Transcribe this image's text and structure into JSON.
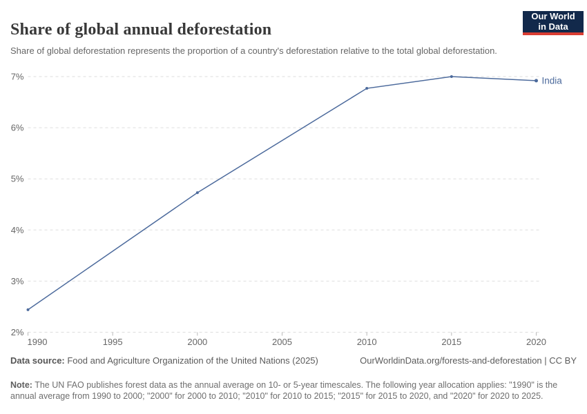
{
  "header": {
    "title": "Share of global annual deforestation",
    "subtitle": "Share of global deforestation represents the proportion of a country's deforestation relative to the total global deforestation.",
    "logo": {
      "line1": "Our World",
      "line2": "in Data",
      "bg_color": "#12294B",
      "accent_color": "#D93D32"
    }
  },
  "chart_data": {
    "type": "line",
    "title": "Share of global annual deforestation",
    "series": [
      {
        "name": "India",
        "color": "#4C6A9C",
        "x": [
          1990,
          2000,
          2010,
          2015,
          2020
        ],
        "values": [
          2.44,
          4.73,
          6.77,
          7.0,
          6.92
        ]
      }
    ],
    "xlabel": "",
    "ylabel": "",
    "x_ticks": [
      1990,
      1995,
      2000,
      2005,
      2010,
      2015,
      2020
    ],
    "y_ticks": [
      2,
      3,
      4,
      5,
      6,
      7
    ],
    "y_suffix": "%",
    "xlim": [
      1990,
      2020
    ],
    "ylim": [
      2,
      7
    ],
    "grid": "horizontal-dashed",
    "grid_color": "#dddddd",
    "tick_label_color": "#666666",
    "legend_position": "end-of-line"
  },
  "footer": {
    "source_label": "Data source:",
    "source_text": " Food and Agriculture Organization of the United Nations (2025)",
    "link_text": "OurWorldinData.org/forests-and-deforestation",
    "license_text": " | CC BY",
    "note_label": "Note:",
    "note_text": " The UN FAO publishes forest data as the annual average on 10- or 5-year timescales. The following year allocation applies: \"1990\" is the annual average from 1990 to 2000; \"2000\" for 2000 to 2010; \"2010\" for 2010 to 2015; \"2015\" for 2015 to 2020, and \"2020\" for 2020 to 2025."
  }
}
